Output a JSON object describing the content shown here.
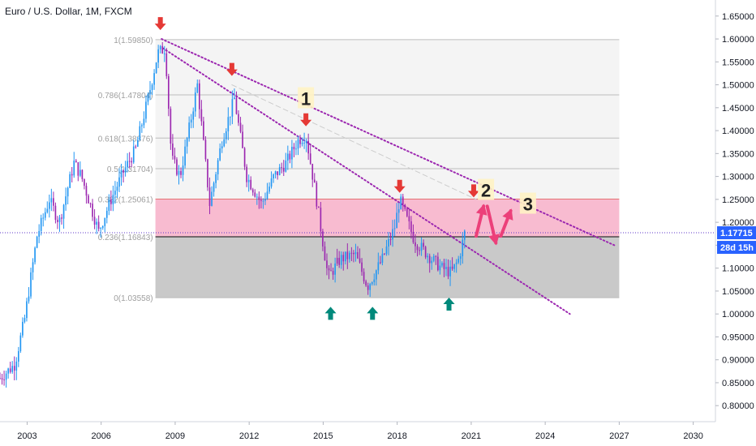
{
  "chart_data": {
    "type": "candlestick",
    "title": "Euro / U.S. Dollar, 1M, FXCM",
    "x_range": [
      2001.9,
      2030.9
    ],
    "y_range": [
      0.765,
      1.685
    ],
    "x_ticks": [
      2003,
      2006,
      2009,
      2012,
      2015,
      2018,
      2021,
      2024,
      2027,
      2030
    ],
    "y_ticks": [
      "0.80000",
      "0.85000",
      "0.90000",
      "0.95000",
      "1.00000",
      "1.05000",
      "1.10000",
      "1.15000",
      "1.20000",
      "1.25000",
      "1.30000",
      "1.35000",
      "1.40000",
      "1.45000",
      "1.50000",
      "1.55000",
      "1.60000",
      "1.65000"
    ],
    "price_path": [
      [
        2001.9,
        0.86
      ],
      [
        2002.5,
        0.89
      ],
      [
        2002.9,
        0.99
      ],
      [
        2003.4,
        1.17
      ],
      [
        2003.9,
        1.25
      ],
      [
        2004.3,
        1.2
      ],
      [
        2004.9,
        1.33
      ],
      [
        2005.2,
        1.3
      ],
      [
        2005.9,
        1.18
      ],
      [
        2006.4,
        1.25
      ],
      [
        2006.9,
        1.31
      ],
      [
        2007.4,
        1.36
      ],
      [
        2007.9,
        1.47
      ],
      [
        2008.3,
        1.57
      ],
      [
        2008.6,
        1.58
      ],
      [
        2008.85,
        1.34
      ],
      [
        2009.2,
        1.3
      ],
      [
        2009.9,
        1.5
      ],
      [
        2010.4,
        1.24
      ],
      [
        2010.9,
        1.38
      ],
      [
        2011.4,
        1.47
      ],
      [
        2011.9,
        1.3
      ],
      [
        2012.5,
        1.24
      ],
      [
        2013.0,
        1.3
      ],
      [
        2013.5,
        1.33
      ],
      [
        2014.0,
        1.38
      ],
      [
        2014.3,
        1.39
      ],
      [
        2014.7,
        1.26
      ],
      [
        2015.2,
        1.08
      ],
      [
        2015.7,
        1.12
      ],
      [
        2016.3,
        1.13
      ],
      [
        2016.8,
        1.06
      ],
      [
        2017.4,
        1.12
      ],
      [
        2017.9,
        1.19
      ],
      [
        2018.1,
        1.25
      ],
      [
        2018.7,
        1.16
      ],
      [
        2019.4,
        1.12
      ],
      [
        2019.8,
        1.1
      ],
      [
        2020.2,
        1.09
      ],
      [
        2020.5,
        1.12
      ],
      [
        2020.75,
        1.18
      ]
    ],
    "highlight_candles": [
      [
        2015.6,
        1.11
      ],
      [
        2016.2,
        1.13
      ]
    ],
    "fib_levels": [
      {
        "label": "1(1.59850)",
        "value": 1.5985
      },
      {
        "label": "0.786(1.47804)",
        "value": 1.47804
      },
      {
        "label": "0.618(1.38376)",
        "value": 1.38376
      },
      {
        "label": "0.5(1.31704)",
        "value": 1.31704
      },
      {
        "label": "0.382(1.25061)",
        "value": 1.25061
      },
      {
        "label": "0.236(1.16843)",
        "value": 1.16843
      },
      {
        "label": "0(1.03558)",
        "value": 1.03558
      }
    ],
    "fib_x_range": [
      2008.2,
      2027.0
    ],
    "zones": [
      {
        "from": 1.16843,
        "to": 1.25061,
        "color": "#f8bbd0"
      },
      {
        "from": 1.03558,
        "to": 1.16843,
        "color": "#c9c9c9"
      }
    ],
    "trendlines": [
      {
        "from": [
          2008.45,
          1.6
        ],
        "to": [
          2026.8,
          1.15
        ],
        "style": "dotted",
        "color": "#9c27b0"
      },
      {
        "from": [
          2008.5,
          1.58
        ],
        "to": [
          2025.0,
          1.0
        ],
        "style": "dotted",
        "color": "#9c27b0"
      },
      {
        "from": [
          2011.3,
          1.5
        ],
        "to": [
          2021.2,
          1.25
        ],
        "style": "dashed",
        "color": "#cccccc"
      }
    ],
    "arrows_down": [
      [
        2008.4,
        1.63
      ],
      [
        2011.3,
        1.53
      ],
      [
        2014.3,
        1.42
      ],
      [
        2018.1,
        1.275
      ],
      [
        2021.1,
        1.265
      ]
    ],
    "arrows_up": [
      [
        2015.3,
        1.005
      ],
      [
        2017.0,
        1.005
      ],
      [
        2020.1,
        1.025
      ]
    ],
    "projection_arrows": [
      {
        "from": [
          2021.2,
          1.17
        ],
        "to": [
          2021.5,
          1.235
        ]
      },
      {
        "from": [
          2021.65,
          1.235
        ],
        "to": [
          2022.0,
          1.155
        ]
      },
      {
        "from": [
          2022.2,
          1.17
        ],
        "to": [
          2022.6,
          1.225
        ]
      }
    ],
    "annotations": [
      {
        "text": "1",
        "at": [
          2014.3,
          1.47
        ]
      },
      {
        "text": "2",
        "at": [
          2021.6,
          1.27
        ]
      },
      {
        "text": "3",
        "at": [
          2023.3,
          1.24
        ]
      }
    ],
    "current_price": {
      "label": "1.17715",
      "value": 1.17715,
      "color": "#2962ff"
    },
    "countdown": {
      "label": "28d 15h",
      "color": "#2962ff"
    }
  }
}
